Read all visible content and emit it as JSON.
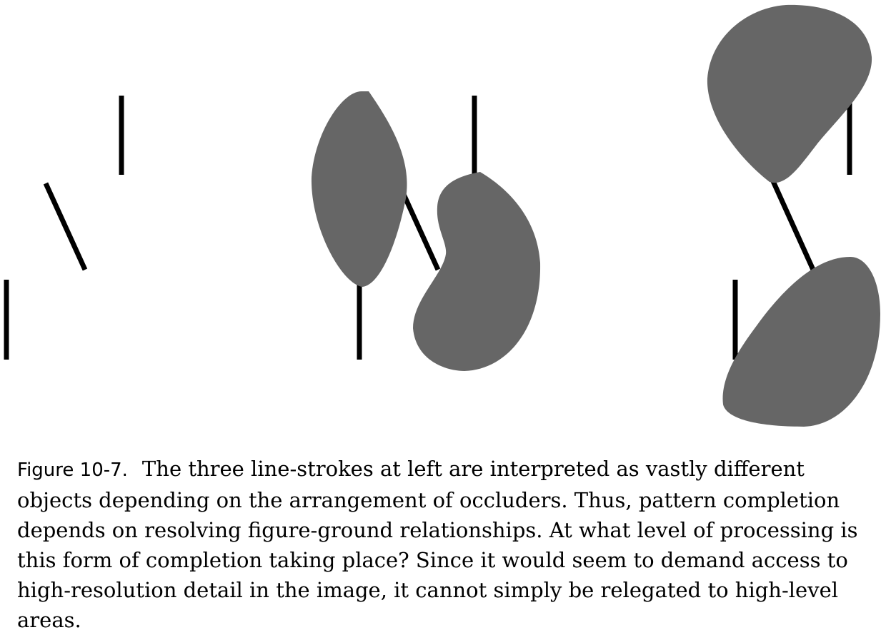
{
  "figure": {
    "panels": [
      {
        "id": "panel-line-strokes-only",
        "occluders": 0
      },
      {
        "id": "panel-occluders-variant-a",
        "occluders": 2
      },
      {
        "id": "panel-occluders-variant-b",
        "occluders": 2
      }
    ],
    "line_color": "#000000",
    "occluder_color": "#666666"
  },
  "caption": {
    "label": "Figure 10-7.",
    "text": "The three line-strokes at left are interpreted as vastly different objects depending on the arrangement of occluders. Thus, pattern completion depends on resolving figure-ground relationships. At what level of processing is this form of completion taking place? Since it would seem to demand access to high-resolution detail in the image, it cannot simply be relegated to high-level areas."
  }
}
